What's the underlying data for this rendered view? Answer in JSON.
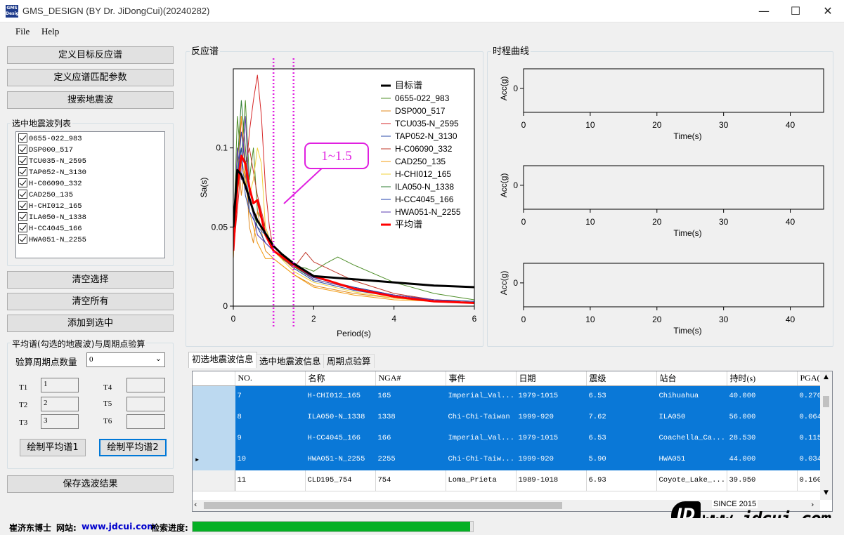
{
  "window": {
    "title": "GMS_DESIGN (BY Dr. JiDongCui)(20240282)",
    "icon_text": "GMS Design",
    "controls": {
      "minimize": "—",
      "maximize": "☐",
      "close": "✕"
    }
  },
  "menu": {
    "file": "File",
    "help": "Help"
  },
  "left": {
    "btn_define_target": "定义目标反应谱",
    "btn_define_match": "定义应谱匹配参数",
    "btn_search": "搜索地震波",
    "list_title": "选中地震波列表",
    "list_items": [
      "0655-022_983",
      "DSP000_517",
      "TCU035-N_2595",
      "TAP052-N_3130",
      "H-C06090_332",
      "CAD250_135",
      "H-CHI012_165",
      "ILA050-N_1338",
      "H-CC4045_166",
      "HWA051-N_2255"
    ],
    "btn_clear_sel": "清空选择",
    "btn_clear_all": "清空所有",
    "btn_add": "添加到选中",
    "avg_group_title": "平均谱(勾选的地震波)与周期点验算",
    "period_count_label": "验算周期点数量",
    "period_count_value": "0",
    "t_labels": [
      "T1",
      "T2",
      "T3",
      "T4",
      "T5",
      "T6"
    ],
    "t_values": [
      "1",
      "2",
      "3",
      "",
      "",
      ""
    ],
    "btn_plot1": "绘制平均谱1",
    "btn_plot2": "绘制平均谱2",
    "btn_save": "保存选波结果"
  },
  "spectrum_panel_title": "反应谱",
  "history_panel_title": "时程曲线",
  "callout_text": "1~1.5",
  "chart_data": [
    {
      "type": "line",
      "title": "反应谱",
      "xlabel": "Period(s)",
      "ylabel": "Sa(s)",
      "xlim": [
        0,
        6
      ],
      "ylim": [
        0,
        0.15
      ],
      "xticks": [
        "0",
        "2",
        "4",
        "6"
      ],
      "yticks": [
        "0",
        "0.05",
        "0.1"
      ],
      "legend_position": "top-right",
      "vertical_markers": [
        1.0,
        1.5
      ],
      "series": [
        {
          "name": "目标谱",
          "color": "#000000",
          "width": 3,
          "x": [
            0,
            0.1,
            0.2,
            0.3,
            0.4,
            0.5,
            0.6,
            0.8,
            1.0,
            1.2,
            1.5,
            2.0,
            3.0,
            4.0,
            5.0,
            6.0
          ],
          "y": [
            0.05,
            0.086,
            0.083,
            0.076,
            0.068,
            0.06,
            0.054,
            0.046,
            0.038,
            0.033,
            0.027,
            0.019,
            0.017,
            0.015,
            0.013,
            0.012
          ]
        },
        {
          "name": "0655-022_983",
          "color": "#4f8f2a",
          "width": 1,
          "x": [
            0,
            0.1,
            0.2,
            0.3,
            0.4,
            0.5,
            0.6,
            0.8,
            1.0,
            1.2,
            1.5,
            1.8,
            2.0,
            2.3,
            2.6,
            3.0,
            4.0,
            5.0,
            6.0
          ],
          "y": [
            0.04,
            0.12,
            0.09,
            0.13,
            0.08,
            0.1,
            0.06,
            0.05,
            0.035,
            0.03,
            0.025,
            0.024,
            0.022,
            0.027,
            0.031,
            0.026,
            0.015,
            0.008,
            0.004
          ]
        },
        {
          "name": "DSP000_517",
          "color": "#e08a1e",
          "width": 1,
          "x": [
            0,
            0.1,
            0.2,
            0.3,
            0.4,
            0.5,
            0.6,
            0.8,
            1.0,
            1.5,
            2.0,
            3.0,
            4.0,
            5.0,
            6.0
          ],
          "y": [
            0.03,
            0.1,
            0.07,
            0.09,
            0.05,
            0.04,
            0.06,
            0.035,
            0.03,
            0.02,
            0.013,
            0.008,
            0.005,
            0.003,
            0.002
          ]
        },
        {
          "name": "TCU035-N_2595",
          "color": "#d62728",
          "width": 1,
          "x": [
            0,
            0.1,
            0.2,
            0.3,
            0.4,
            0.5,
            0.6,
            0.7,
            0.8,
            0.9,
            1.0,
            1.5,
            2.0,
            3.0,
            4.0,
            5.0,
            6.0
          ],
          "y": [
            0.035,
            0.06,
            0.09,
            0.08,
            0.11,
            0.13,
            0.146,
            0.12,
            0.075,
            0.05,
            0.035,
            0.025,
            0.018,
            0.012,
            0.007,
            0.004,
            0.002
          ]
        },
        {
          "name": "TAP052-N_3130",
          "color": "#2b4ba8",
          "width": 1,
          "x": [
            0,
            0.1,
            0.2,
            0.3,
            0.4,
            0.6,
            0.8,
            1.0,
            1.5,
            2.0,
            3.0,
            4.0,
            5.0,
            6.0
          ],
          "y": [
            0.04,
            0.08,
            0.1,
            0.07,
            0.06,
            0.05,
            0.045,
            0.035,
            0.024,
            0.016,
            0.01,
            0.006,
            0.004,
            0.002
          ]
        },
        {
          "name": "H-C06090_332",
          "color": "#c0392b",
          "width": 1,
          "x": [
            0,
            0.1,
            0.2,
            0.3,
            0.4,
            0.6,
            0.8,
            1.0,
            1.5,
            1.8,
            2.0,
            2.5,
            3.0,
            4.0,
            5.0,
            6.0
          ],
          "y": [
            0.04,
            0.07,
            0.12,
            0.09,
            0.1,
            0.07,
            0.05,
            0.035,
            0.024,
            0.034,
            0.028,
            0.022,
            0.016,
            0.008,
            0.004,
            0.002
          ]
        },
        {
          "name": "CAD250_135",
          "color": "#f39c12",
          "width": 1,
          "x": [
            0,
            0.1,
            0.2,
            0.3,
            0.4,
            0.6,
            0.8,
            1.0,
            1.5,
            2.0,
            3.0,
            4.0,
            5.0,
            6.0
          ],
          "y": [
            0.03,
            0.09,
            0.12,
            0.08,
            0.06,
            0.04,
            0.03,
            0.03,
            0.02,
            0.012,
            0.007,
            0.004,
            0.003,
            0.002
          ]
        },
        {
          "name": "H-CHI012_165",
          "color": "#f1d13a",
          "width": 1,
          "x": [
            0,
            0.1,
            0.2,
            0.3,
            0.4,
            0.5,
            0.6,
            0.7,
            0.8,
            1.0,
            1.5,
            2.0,
            3.0,
            4.0,
            5.0,
            6.0
          ],
          "y": [
            0.04,
            0.07,
            0.09,
            0.08,
            0.07,
            0.08,
            0.1,
            0.09,
            0.05,
            0.035,
            0.022,
            0.015,
            0.009,
            0.005,
            0.003,
            0.002
          ]
        },
        {
          "name": "ILA050-N_1338",
          "color": "#2e7d32",
          "width": 1,
          "x": [
            0,
            0.1,
            0.2,
            0.3,
            0.4,
            0.6,
            0.8,
            1.0,
            1.5,
            2.0,
            3.0,
            4.0,
            5.0,
            6.0
          ],
          "y": [
            0.04,
            0.09,
            0.13,
            0.1,
            0.07,
            0.05,
            0.04,
            0.035,
            0.025,
            0.017,
            0.011,
            0.007,
            0.004,
            0.003
          ]
        },
        {
          "name": "H-CC4045_166",
          "color": "#1f3fae",
          "width": 1,
          "x": [
            0,
            0.1,
            0.2,
            0.3,
            0.4,
            0.6,
            0.8,
            1.0,
            1.5,
            2.0,
            3.0,
            4.0,
            5.0,
            6.0
          ],
          "y": [
            0.04,
            0.08,
            0.11,
            0.09,
            0.06,
            0.05,
            0.04,
            0.035,
            0.026,
            0.018,
            0.012,
            0.007,
            0.004,
            0.003
          ]
        },
        {
          "name": "HWA051-N_2255",
          "color": "#5b3bb0",
          "width": 1,
          "x": [
            0,
            0.1,
            0.2,
            0.3,
            0.4,
            0.6,
            0.8,
            1.0,
            1.5,
            2.0,
            3.0,
            4.0,
            5.0,
            6.0
          ],
          "y": [
            0.04,
            0.1,
            0.08,
            0.12,
            0.07,
            0.045,
            0.04,
            0.035,
            0.026,
            0.017,
            0.011,
            0.007,
            0.004,
            0.002
          ]
        },
        {
          "name": "平均谱",
          "color": "#ff0000",
          "width": 3,
          "x": [
            0,
            0.1,
            0.2,
            0.3,
            0.4,
            0.5,
            0.6,
            0.8,
            1.0,
            1.5,
            2.0,
            2.5,
            3.0,
            4.0,
            5.0,
            6.0
          ],
          "y": [
            0.035,
            0.075,
            0.095,
            0.09,
            0.075,
            0.065,
            0.067,
            0.045,
            0.035,
            0.026,
            0.019,
            0.015,
            0.011,
            0.006,
            0.003,
            0.002
          ]
        }
      ]
    },
    {
      "type": "line",
      "xlabel": "Time(s)",
      "ylabel": "Acc(g)",
      "xlim": [
        0,
        45
      ],
      "xticks": [
        "0",
        "10",
        "20",
        "30",
        "40"
      ],
      "yticks": [
        "0"
      ],
      "series": []
    },
    {
      "type": "line",
      "xlabel": "Time(s)",
      "ylabel": "Acc(g)",
      "xlim": [
        0,
        45
      ],
      "xticks": [
        "0",
        "10",
        "20",
        "30",
        "40"
      ],
      "yticks": [
        "0"
      ],
      "series": []
    },
    {
      "type": "line",
      "xlabel": "Time(s)",
      "ylabel": "Acc(g)",
      "xlim": [
        0,
        45
      ],
      "xticks": [
        "0",
        "10",
        "20",
        "30",
        "40"
      ],
      "yticks": [
        "0"
      ],
      "series": []
    }
  ],
  "tabs": [
    "初选地震波信息",
    "选中地震波信息",
    "周期点验算"
  ],
  "table": {
    "headers": [
      "NO.",
      "名称",
      "NGA#",
      "事件",
      "日期",
      "震级",
      "站台",
      "持时(s)",
      "PGA("
    ],
    "rows": [
      {
        "selected": true,
        "cells": [
          "7",
          "H-CHI012_165",
          "165",
          "Imperial_Val...",
          "1979-1015",
          "6.53",
          "Chihuahua",
          "40.000",
          "0.270"
        ]
      },
      {
        "selected": true,
        "cells": [
          "8",
          "ILA050-N_1338",
          "1338",
          "Chi-Chi-Taiwan",
          "1999-920",
          "7.62",
          "ILA050",
          "56.000",
          "0.064"
        ]
      },
      {
        "selected": true,
        "cells": [
          "9",
          "H-CC4045_166",
          "166",
          "Imperial_Val...",
          "1979-1015",
          "6.53",
          "Coachella_Ca...",
          "28.530",
          "0.115"
        ]
      },
      {
        "selected": true,
        "current": true,
        "cells": [
          "10",
          "HWA051-N_2255",
          "2255",
          "Chi-Chi-Taiw...",
          "1999-920",
          "5.90",
          "HWA051",
          "44.000",
          "0.034"
        ]
      },
      {
        "selected": false,
        "cells": [
          "11",
          "CLD195_754",
          "754",
          "Loma_Prieta",
          "1989-1018",
          "6.93",
          "Coyote_Lake_...",
          "39.950",
          "0.160"
        ]
      }
    ]
  },
  "status": {
    "author_label": "崔济东博士",
    "website_label": "网站:",
    "website_url": "www.jdcui.com",
    "progress_label": "检索进度:",
    "progress_fraction": 0.99
  },
  "watermark": {
    "since": "SINCE 2015",
    "url": "www.jdcui.com"
  }
}
